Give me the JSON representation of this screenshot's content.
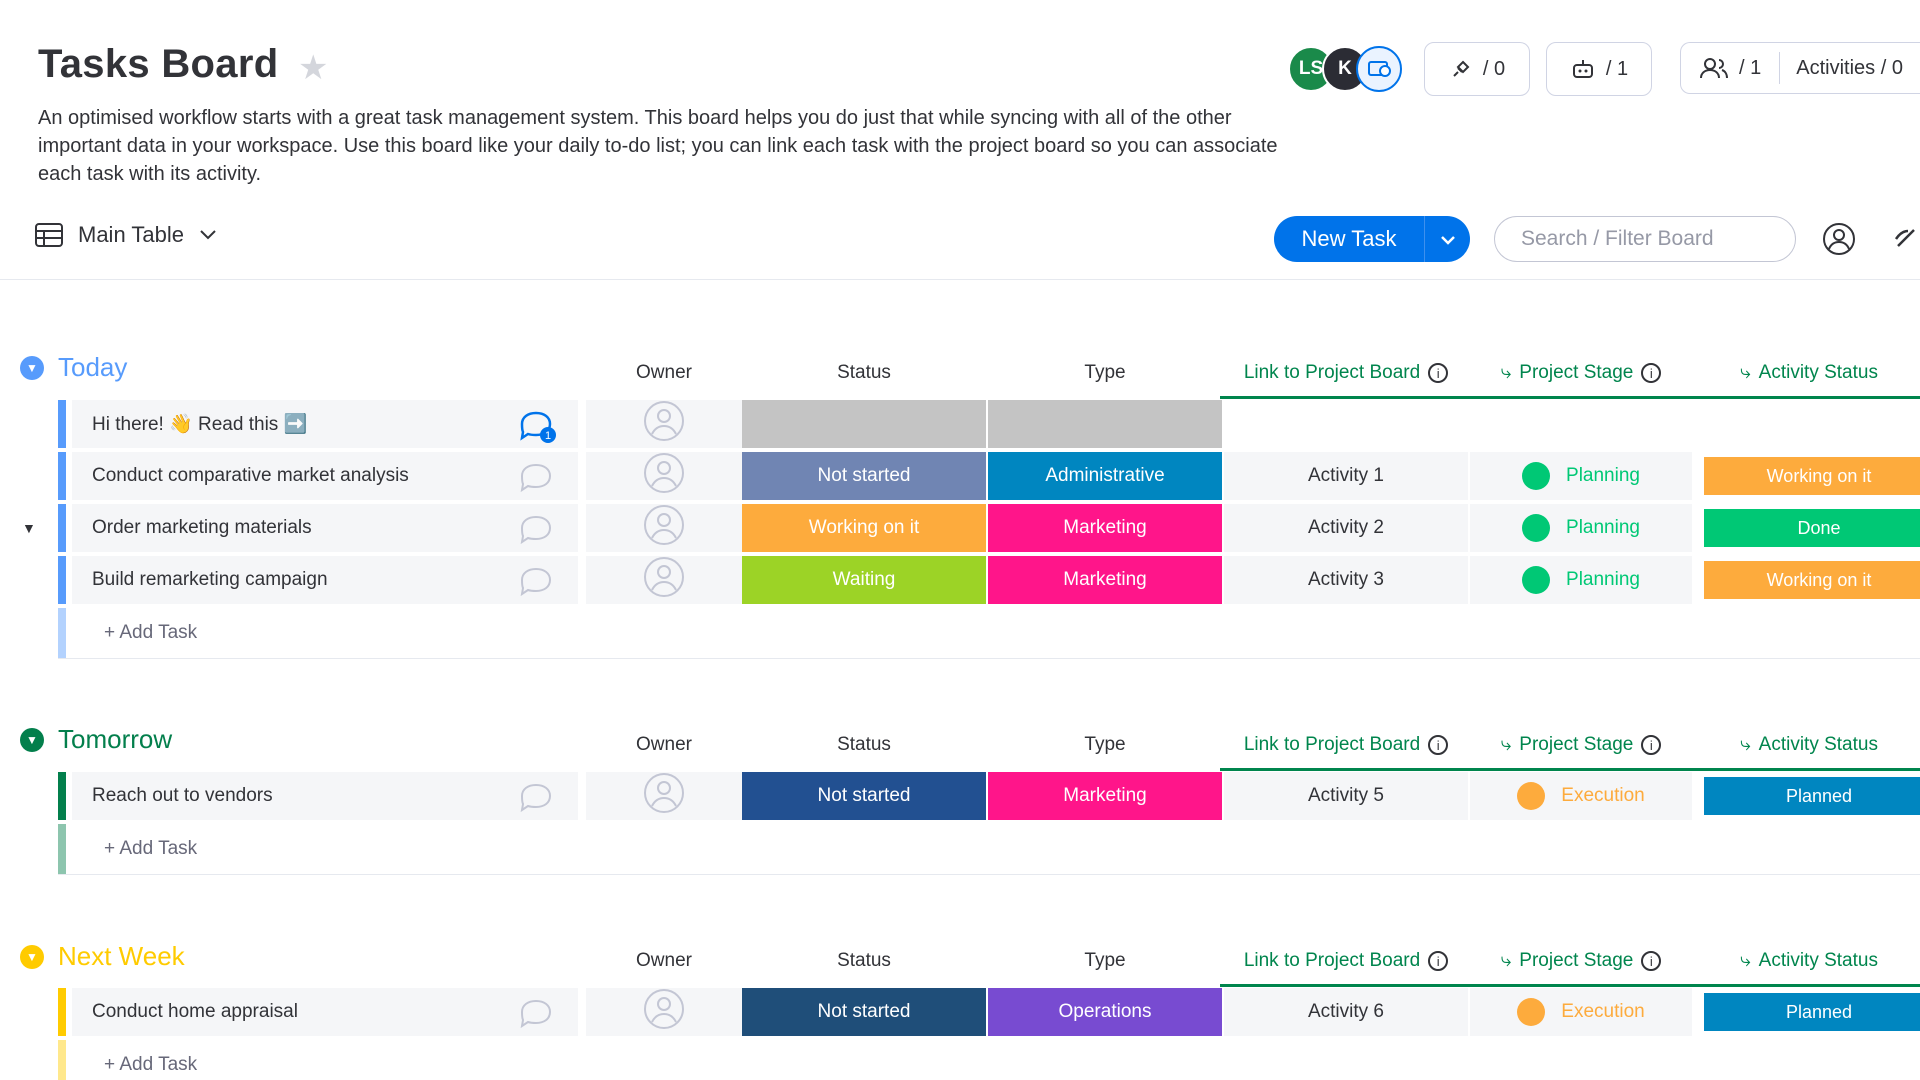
{
  "board": {
    "title": "Tasks Board",
    "description": "An optimised workflow starts with a great task management system. This board helps you do just that while syncing with all of the other important data in your workspace. Use this board like your daily to-do list; you can link each task with the project board so you can associate each task with its activity."
  },
  "header": {
    "avatars": [
      {
        "initials": "LS",
        "color": "#1a8a4a"
      },
      {
        "initials": "K",
        "color": "#2b2c34"
      }
    ],
    "integrations_count": "/ 0",
    "automations_count": "/ 1",
    "members_count": "/ 1",
    "activities_label": "Activities / 0"
  },
  "toolbar": {
    "view_label": "Main Table",
    "new_task_label": "New Task",
    "search_placeholder": "Search / Filter Board"
  },
  "columns": {
    "owner": "Owner",
    "status": "Status",
    "type": "Type",
    "link": "Link to Project Board",
    "stage": "Project Stage",
    "activity": "Activity Status"
  },
  "add_task_label": "+ Add Task",
  "groups": [
    {
      "name": "Today",
      "color": "#579bfc",
      "rows": [
        {
          "name": "Hi there! 👋 Read this ➡️",
          "status": "",
          "status_color": "#c4c4c4",
          "type": "",
          "type_color": "#c4c4c4",
          "link": "",
          "stage": "",
          "stage_color": "",
          "activity": "",
          "activity_color": "",
          "updates": "1"
        },
        {
          "name": "Conduct comparative market analysis",
          "status": "Not started",
          "status_color": "#7085b3",
          "type": "Administrative",
          "type_color": "#0086c0",
          "link": "Activity 1",
          "stage": "Planning",
          "stage_color": "#00c875",
          "activity": "Working on it",
          "activity_color": "#fdab3d",
          "updates": ""
        },
        {
          "name": "Order marketing materials",
          "status": "Working on it",
          "status_color": "#fdab3d",
          "type": "Marketing",
          "type_color": "#ff158a",
          "link": "Activity 2",
          "stage": "Planning",
          "stage_color": "#00c875",
          "activity": "Done",
          "activity_color": "#00c875",
          "updates": ""
        },
        {
          "name": "Build remarketing campaign",
          "status": "Waiting",
          "status_color": "#9cd326",
          "type": "Marketing",
          "type_color": "#ff158a",
          "link": "Activity 3",
          "stage": "Planning",
          "stage_color": "#00c875",
          "activity": "Working on it",
          "activity_color": "#fdab3d",
          "updates": ""
        }
      ]
    },
    {
      "name": "Tomorrow",
      "color": "#037f4c",
      "rows": [
        {
          "name": "Reach out to vendors",
          "status": "Not started",
          "status_color": "#225091",
          "type": "Marketing",
          "type_color": "#ff158a",
          "link": "Activity 5",
          "stage": "Execution",
          "stage_color": "#fdab3d",
          "activity": "Planned",
          "activity_color": "#0086c0",
          "updates": ""
        }
      ]
    },
    {
      "name": "Next Week",
      "color": "#ffcb00",
      "rows": [
        {
          "name": "Conduct home appraisal",
          "status": "Not started",
          "status_color": "#1f4e79",
          "type": "Operations",
          "type_color": "#784bd1",
          "link": "Activity 6",
          "stage": "Execution",
          "stage_color": "#fdab3d",
          "activity": "Planned",
          "activity_color": "#0086c0",
          "updates": ""
        }
      ]
    }
  ]
}
